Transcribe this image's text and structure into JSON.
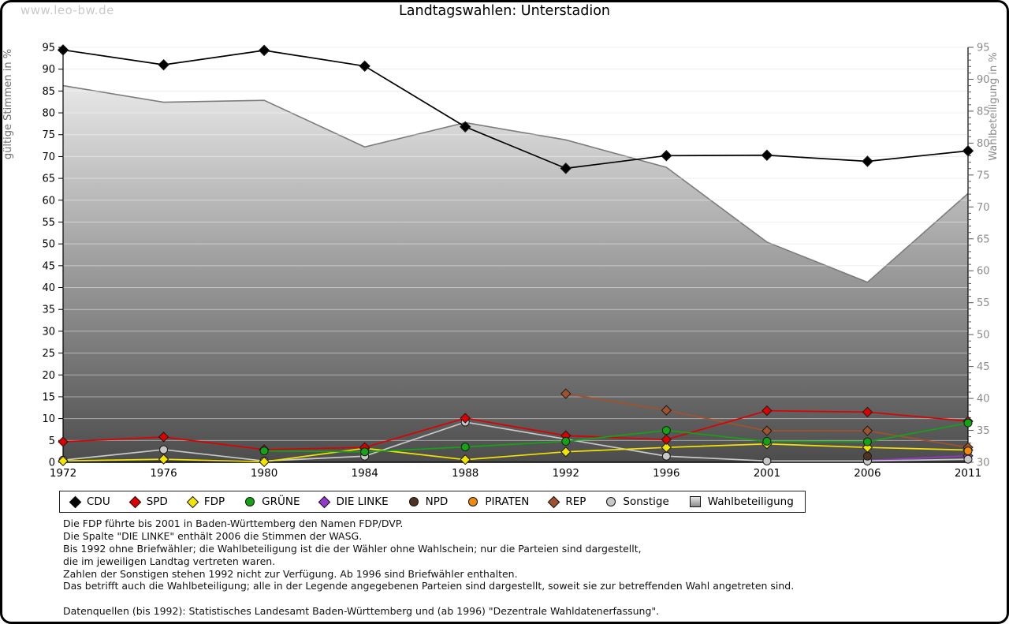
{
  "watermark": "www.leo-bw.de",
  "header": {
    "title": "Landtagswahlen: Unterstadion"
  },
  "footer": {
    "text": "Die FDP führte bis 2001 in Baden-Württemberg den Namen FDP/DVP.\nDie Spalte \"DIE LINKE\" enthält 2006 die Stimmen der WASG.\nBis 1992 ohne Briefwähler; die Wahlbeteiligung ist die der Wähler ohne Wahlschein; nur die Parteien sind dargestellt,\ndie im jeweiligen Landtag vertreten waren.\nZahlen der Sonstigen stehen 1992 nicht zur Verfügung. Ab 1996 sind Briefwähler enthalten.\nDas betrifft auch die Wahlbeteiligung; alle in der Legende angegebenen Parteien sind dargestellt, soweit sie zur betreffenden Wahl angetreten sind.\n\nDatenquellen (bis 1992): Statistisches Landesamt Baden-Württemberg und (ab 1996) \"Dezentrale Wahldatenerfassung\"."
  },
  "chart_data": {
    "type": "line",
    "title": "Landtagswahlen: Unterstadion",
    "x_categories": [
      "1972",
      "1976",
      "1980",
      "1984",
      "1988",
      "1992",
      "1996",
      "2001",
      "2006",
      "2011"
    ],
    "ylabel_left": "gültige Stimmen in %",
    "ylabel_right": "Wahlbeteiligung in %",
    "ylim_left": [
      0,
      95
    ],
    "ylim_right": [
      30,
      95
    ],
    "ytick_step": 5,
    "grid": true,
    "legend_position": "bottom",
    "series": [
      {
        "name": "CDU",
        "color": "#000000",
        "marker": "diamond",
        "axis": "left",
        "z": 9,
        "values": [
          94.4,
          91.0,
          94.3,
          90.7,
          76.8,
          67.3,
          70.2,
          70.3,
          68.9,
          71.3
        ]
      },
      {
        "name": "SPD",
        "color": "#dd0000",
        "marker": "diamond",
        "axis": "left",
        "z": 7,
        "values": [
          4.7,
          5.8,
          2.9,
          3.4,
          10.1,
          6.1,
          5.2,
          11.8,
          11.5,
          9.4
        ]
      },
      {
        "name": "FDP",
        "color": "#f2e400",
        "marker": "diamond",
        "axis": "left",
        "z": 4,
        "values": [
          0.3,
          0.7,
          0.1,
          3.2,
          0.6,
          2.4,
          3.4,
          4.2,
          3.4,
          2.8
        ]
      },
      {
        "name": "GRÜNE",
        "color": "#14a314",
        "marker": "circle",
        "axis": "left",
        "z": 8,
        "values": [
          null,
          null,
          2.6,
          2.4,
          3.5,
          4.8,
          7.3,
          4.8,
          4.7,
          9.0
        ]
      },
      {
        "name": "DIE LINKE",
        "color": "#9636cc",
        "marker": "diamond",
        "axis": "left",
        "z": 1,
        "values": [
          null,
          null,
          null,
          null,
          null,
          null,
          null,
          null,
          0.4,
          1.5
        ]
      },
      {
        "name": "NPD",
        "color": "#4f3222",
        "marker": "circle",
        "axis": "left",
        "z": 3,
        "values": [
          null,
          null,
          null,
          null,
          null,
          null,
          null,
          null,
          1.4,
          null
        ]
      },
      {
        "name": "PIRATEN",
        "color": "#ef8a0e",
        "marker": "circle",
        "axis": "left",
        "z": 6,
        "values": [
          null,
          null,
          null,
          null,
          null,
          null,
          null,
          null,
          null,
          2.6
        ]
      },
      {
        "name": "REP",
        "color": "#a0522d",
        "marker": "diamond",
        "axis": "left",
        "z": 5,
        "values": [
          null,
          null,
          null,
          null,
          null,
          15.7,
          11.9,
          7.2,
          7.2,
          3.4
        ]
      },
      {
        "name": "Sonstige",
        "color": "#c8c8c8",
        "marker": "circle",
        "axis": "left",
        "z": 2,
        "values": [
          0.5,
          2.9,
          0.3,
          1.4,
          9.2,
          null,
          1.4,
          0.3,
          0.3,
          0.7
        ]
      },
      {
        "name": "Wahlbeteiligung",
        "color": "#7c7c7c",
        "marker": "square",
        "axis": "right",
        "type": "area",
        "z": 0,
        "values": [
          89.0,
          86.4,
          86.7,
          79.4,
          83.2,
          80.5,
          76.2,
          64.5,
          58.2,
          72.1
        ]
      }
    ]
  }
}
